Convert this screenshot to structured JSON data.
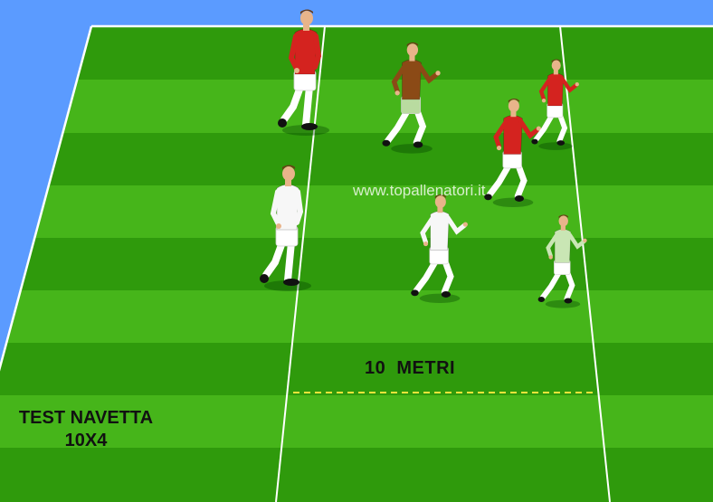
{
  "distance_label": "10  METRI",
  "watermark": "www.topallenatori.it",
  "test_title": {
    "line1": "TEST NAVETTA",
    "line2": "10X4"
  },
  "colors": {
    "background_blue": "#5b9bff",
    "grass_dark": "#2f9a0c",
    "grass_light": "#46b51a",
    "field_lines": "#ffffff",
    "dashed_line": "#f2e33a",
    "shirt_red": "#d4231f",
    "shirt_white": "#f7f7f7",
    "shirt_brown": "#8b4a16",
    "shirt_pale_green": "#c9e6b4"
  },
  "players": [
    {
      "kit": "red",
      "pose": "standing"
    },
    {
      "kit": "brown",
      "pose": "running"
    },
    {
      "kit": "red",
      "pose": "running"
    },
    {
      "kit": "red",
      "pose": "running"
    },
    {
      "kit": "white",
      "pose": "standing"
    },
    {
      "kit": "white",
      "pose": "running"
    },
    {
      "kit": "pale-green",
      "pose": "running"
    }
  ]
}
